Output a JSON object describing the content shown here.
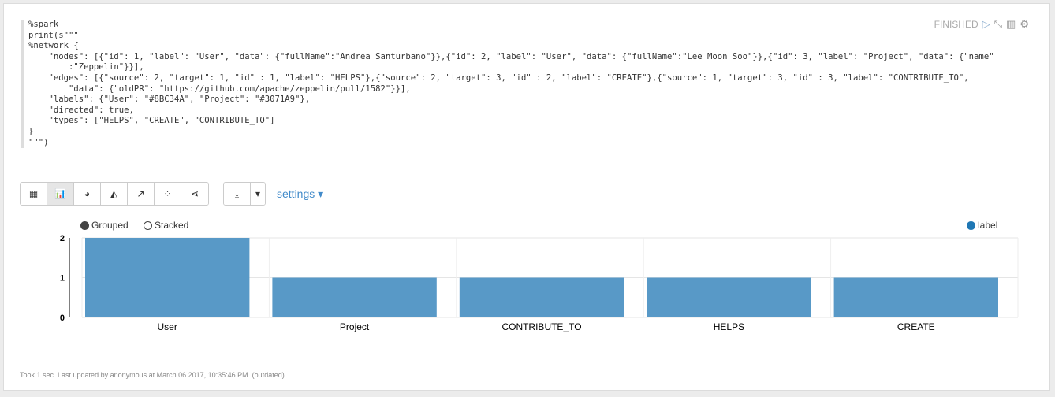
{
  "paragraph": {
    "code_lines": [
      "%spark",
      "print(s\"\"\"",
      "%network {",
      "    \"nodes\": [{\"id\": 1, \"label\": \"User\", \"data\": {\"fullName\":\"Andrea Santurbano\"}},{\"id\": 2, \"label\": \"User\", \"data\": {\"fullName\":\"Lee Moon Soo\"}},{\"id\": 3, \"label\": \"Project\", \"data\": {\"name\"",
      "        :\"Zeppelin\"}}],",
      "    \"edges\": [{\"source\": 2, \"target\": 1, \"id\" : 1, \"label\": \"HELPS\"},{\"source\": 2, \"target\": 3, \"id\" : 2, \"label\": \"CREATE\"},{\"source\": 1, \"target\": 3, \"id\" : 3, \"label\": \"CONTRIBUTE_TO\",",
      "        \"data\": {\"oldPR\": \"https://github.com/apache/zeppelin/pull/1582\"}}],",
      "    \"labels\": {\"User\": \"#8BC34A\", \"Project\": \"#3071A9\"},",
      "    \"directed\": true,",
      "    \"types\": [\"HELPS\", \"CREATE\", \"CONTRIBUTE_TO\"]",
      "}",
      "\"\"\")"
    ],
    "status": "FINISHED",
    "icons": [
      "run-icon",
      "hide-editor-icon",
      "book-icon",
      "gear-icon"
    ],
    "footer": "Took 1 sec. Last updated by anonymous at March 06 2017, 10:35:46 PM. (outdated)"
  },
  "toolbar": {
    "views": [
      "table",
      "bar-chart",
      "pie-chart",
      "area-chart",
      "line-chart",
      "scatter-chart",
      "network"
    ],
    "active_view": "bar-chart",
    "settings_label": "settings"
  },
  "chart_data": {
    "type": "bar",
    "categories": [
      "User",
      "Project",
      "CONTRIBUTE_TO",
      "HELPS",
      "CREATE"
    ],
    "series": [
      {
        "name": "label",
        "values": [
          2,
          1,
          1,
          1,
          1
        ],
        "color": "#5899c7"
      }
    ],
    "ylim": [
      0,
      2
    ],
    "yticks": [
      0,
      1,
      2
    ],
    "grid": true,
    "legend_position": "top-right",
    "mode_options": [
      "Grouped",
      "Stacked"
    ],
    "selected_mode": "Grouped"
  }
}
